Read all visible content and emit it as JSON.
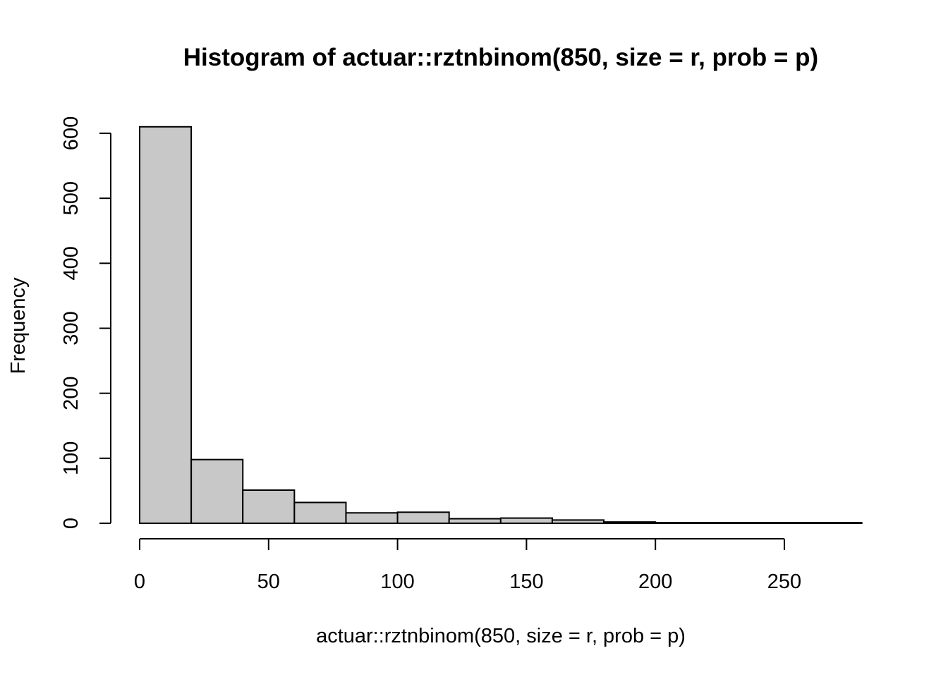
{
  "chart_data": {
    "type": "bar",
    "title": "Histogram of actuar::rztnbinom(850, size = r, prob = p)",
    "xlabel": "actuar::rztnbinom(850, size = r, prob = p)",
    "ylabel": "Frequency",
    "bins": [
      {
        "x0": 0,
        "x1": 20,
        "count": 610
      },
      {
        "x0": 20,
        "x1": 40,
        "count": 98
      },
      {
        "x0": 40,
        "x1": 60,
        "count": 51
      },
      {
        "x0": 60,
        "x1": 80,
        "count": 32
      },
      {
        "x0": 80,
        "x1": 100,
        "count": 16
      },
      {
        "x0": 100,
        "x1": 120,
        "count": 17
      },
      {
        "x0": 120,
        "x1": 140,
        "count": 7
      },
      {
        "x0": 140,
        "x1": 160,
        "count": 8
      },
      {
        "x0": 160,
        "x1": 180,
        "count": 5
      },
      {
        "x0": 180,
        "x1": 200,
        "count": 2
      },
      {
        "x0": 200,
        "x1": 220,
        "count": 1
      },
      {
        "x0": 220,
        "x1": 240,
        "count": 1
      },
      {
        "x0": 240,
        "x1": 260,
        "count": 1
      },
      {
        "x0": 260,
        "x1": 280,
        "count": 1
      }
    ],
    "xticks": [
      0,
      50,
      100,
      150,
      200,
      250
    ],
    "yticks": [
      0,
      100,
      200,
      300,
      400,
      500,
      600
    ],
    "xlim": [
      0,
      280
    ],
    "ylim": [
      0,
      610
    ],
    "bar_color": "#c8c8c8",
    "grid": false
  }
}
